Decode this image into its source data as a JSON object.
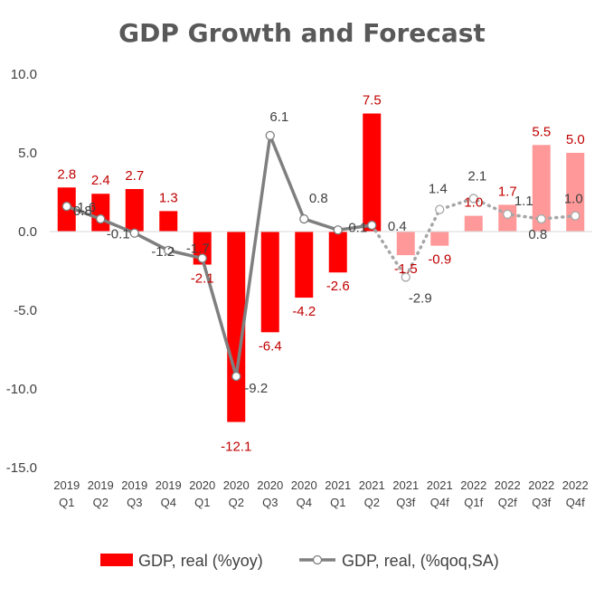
{
  "chart_data": {
    "type": "bar",
    "title": "GDP Growth and Forecast",
    "categories": [
      [
        "2019",
        "Q1"
      ],
      [
        "2019",
        "Q2"
      ],
      [
        "2019",
        "Q3"
      ],
      [
        "2019",
        "Q4"
      ],
      [
        "2020",
        "Q1"
      ],
      [
        "2020",
        "Q2"
      ],
      [
        "2020",
        "Q3"
      ],
      [
        "2020",
        "Q4"
      ],
      [
        "2021",
        "Q1"
      ],
      [
        "2021",
        "Q2"
      ],
      [
        "2021",
        "Q3f"
      ],
      [
        "2021",
        "Q4f"
      ],
      [
        "2022",
        "Q1f"
      ],
      [
        "2022",
        "Q2f"
      ],
      [
        "2022",
        "Q3f"
      ],
      [
        "2022",
        "Q4f"
      ]
    ],
    "ylim": [
      -15,
      10
    ],
    "yticks": [
      "10.0",
      "5.0",
      "0.0",
      "-5.0",
      "-10.0",
      "-15.0"
    ],
    "forecast_start_index": 10,
    "series": [
      {
        "name": "GDP, real (%yoy)",
        "kind": "bar",
        "values": [
          2.8,
          2.4,
          2.7,
          1.3,
          -2.1,
          -12.1,
          -6.4,
          -4.2,
          -2.6,
          7.5,
          -1.5,
          -0.9,
          1.0,
          1.7,
          5.5,
          5.0
        ],
        "labels": [
          "2.8",
          "2.4",
          "2.7",
          "1.3",
          "-2.1",
          "-12.1",
          "-6.4",
          "-4.2",
          "-2.6",
          "7.5",
          "-1.5",
          "-0.9",
          "1.0",
          "1.7",
          "5.5",
          "5.0"
        ],
        "color": "#ff0000",
        "forecast_color": "#ff9999",
        "label_color": "#c00000"
      },
      {
        "name": "GDP, real, (%qoq,SA)",
        "kind": "line",
        "values": [
          1.6,
          0.8,
          -0.1,
          -1.2,
          -1.7,
          -9.2,
          6.1,
          0.8,
          0.1,
          0.4,
          -2.9,
          1.4,
          2.1,
          1.1,
          0.8,
          1.0
        ],
        "labels": [
          "1.6",
          "0.8",
          "-0.1",
          "-1.2",
          "-1.7",
          "-9.2",
          "6.1",
          "0.8",
          "0.1",
          "0.4",
          "-2.9",
          "1.4",
          "2.1",
          "1.1",
          "0.8",
          "1.0"
        ],
        "color": "#7f7f7f",
        "forecast_color": "#a6a6a6"
      }
    ],
    "legend_position": "bottom",
    "grid": false
  }
}
